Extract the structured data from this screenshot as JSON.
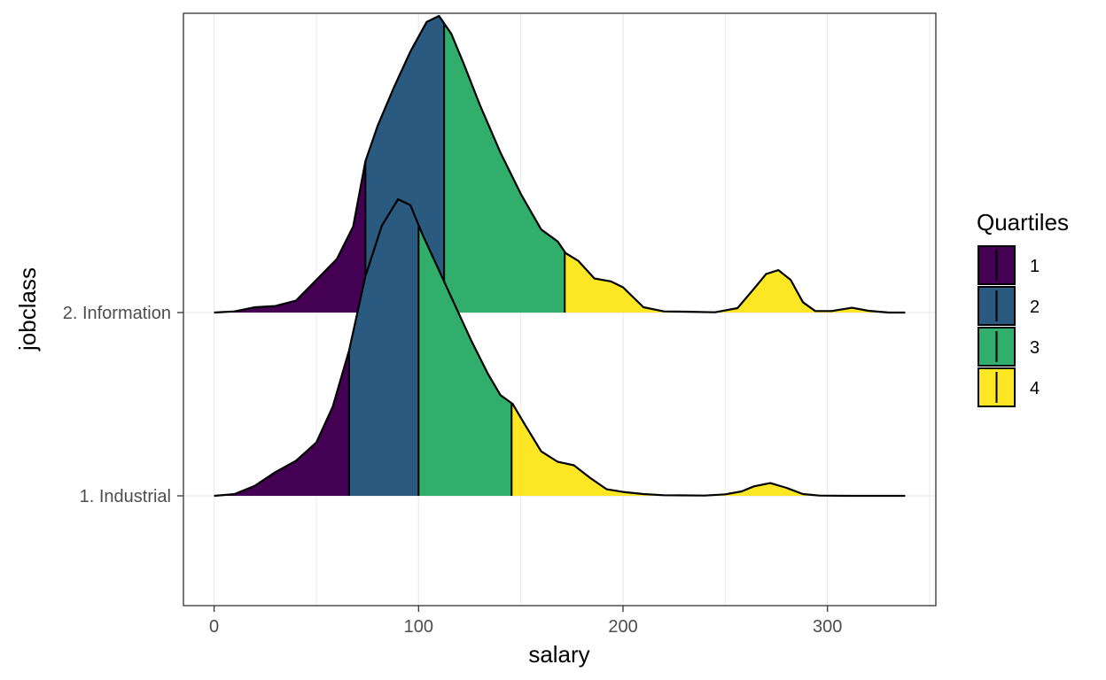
{
  "chart_data": {
    "type": "area",
    "subtype": "density-ridgeline-quartiles",
    "xlabel": "salary",
    "ylabel": "jobclass",
    "xlim": [
      -15,
      353
    ],
    "x_ticks": [
      0,
      100,
      200,
      300
    ],
    "x_tick_labels": [
      "0",
      "100",
      "200",
      "300"
    ],
    "categories": [
      "1. Industrial",
      "2. Information"
    ],
    "grid": true,
    "legend": {
      "title": "Quartiles",
      "placement": "right",
      "entries": [
        {
          "label": "1",
          "color": "#440154"
        },
        {
          "label": "2",
          "color": "#2a5a80"
        },
        {
          "label": "3",
          "color": "#31ae6b"
        },
        {
          "label": "4",
          "color": "#fde725"
        }
      ]
    },
    "series": [
      {
        "category": "1. Industrial",
        "quartile_breaks": [
          66,
          100,
          145.5
        ],
        "density": [
          [
            0,
            0.0
          ],
          [
            10,
            0.006
          ],
          [
            20,
            0.034
          ],
          [
            30,
            0.08
          ],
          [
            40,
            0.118
          ],
          [
            50,
            0.18
          ],
          [
            58,
            0.3
          ],
          [
            66,
            0.49
          ],
          [
            74,
            0.74
          ],
          [
            82,
            0.91
          ],
          [
            90,
            1.0
          ],
          [
            96,
            0.98
          ],
          [
            102,
            0.88
          ],
          [
            110,
            0.76
          ],
          [
            118,
            0.64
          ],
          [
            126,
            0.52
          ],
          [
            134,
            0.41
          ],
          [
            140,
            0.34
          ],
          [
            146,
            0.31
          ],
          [
            152,
            0.24
          ],
          [
            160,
            0.15
          ],
          [
            168,
            0.115
          ],
          [
            176,
            0.103
          ],
          [
            184,
            0.06
          ],
          [
            192,
            0.022
          ],
          [
            200,
            0.013
          ],
          [
            210,
            0.006
          ],
          [
            220,
            0.002
          ],
          [
            240,
            0.001
          ],
          [
            250,
            0.005
          ],
          [
            258,
            0.015
          ],
          [
            264,
            0.032
          ],
          [
            272,
            0.043
          ],
          [
            280,
            0.027
          ],
          [
            288,
            0.006
          ],
          [
            296,
            0.001
          ],
          [
            310,
            0.0
          ],
          [
            338,
            0.0
          ]
        ]
      },
      {
        "category": "2. Information",
        "quartile_breaks": [
          74,
          112.5,
          171.5
        ],
        "density": [
          [
            0,
            0.0
          ],
          [
            10,
            0.004
          ],
          [
            20,
            0.018
          ],
          [
            30,
            0.022
          ],
          [
            40,
            0.04
          ],
          [
            50,
            0.11
          ],
          [
            60,
            0.18
          ],
          [
            68,
            0.29
          ],
          [
            74,
            0.51
          ],
          [
            80,
            0.63
          ],
          [
            88,
            0.76
          ],
          [
            96,
            0.88
          ],
          [
            104,
            0.98
          ],
          [
            110,
            1.0
          ],
          [
            116,
            0.94
          ],
          [
            122,
            0.84
          ],
          [
            130,
            0.7
          ],
          [
            140,
            0.54
          ],
          [
            150,
            0.4
          ],
          [
            160,
            0.28
          ],
          [
            168,
            0.24
          ],
          [
            172,
            0.2
          ],
          [
            178,
            0.175
          ],
          [
            186,
            0.115
          ],
          [
            194,
            0.105
          ],
          [
            200,
            0.085
          ],
          [
            210,
            0.018
          ],
          [
            220,
            0.004
          ],
          [
            230,
            0.003
          ],
          [
            245,
            0.001
          ],
          [
            256,
            0.015
          ],
          [
            264,
            0.08
          ],
          [
            270,
            0.13
          ],
          [
            276,
            0.143
          ],
          [
            282,
            0.11
          ],
          [
            288,
            0.035
          ],
          [
            294,
            0.005
          ],
          [
            302,
            0.005
          ],
          [
            312,
            0.016
          ],
          [
            320,
            0.006
          ],
          [
            330,
            0.0
          ],
          [
            338,
            0.0
          ]
        ]
      }
    ]
  }
}
